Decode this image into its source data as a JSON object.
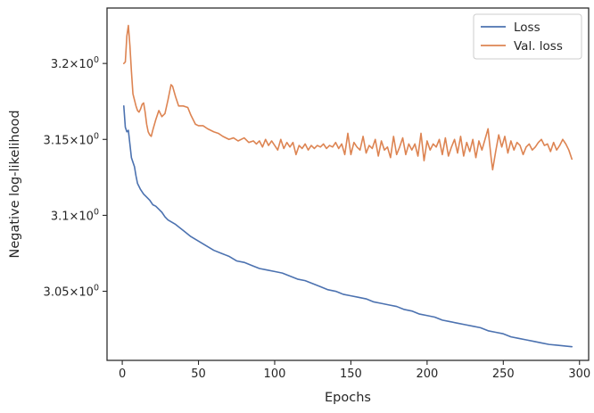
{
  "chart_data": {
    "type": "line",
    "xlabel": "Epochs",
    "ylabel": "Negative log-likelihood",
    "xlim": [
      -10,
      306
    ],
    "ylim": [
      3.0045,
      3.2365
    ],
    "x_ticks": [
      {
        "value": 0,
        "label": "0"
      },
      {
        "value": 50,
        "label": "50"
      },
      {
        "value": 100,
        "label": "100"
      },
      {
        "value": 150,
        "label": "150"
      },
      {
        "value": 200,
        "label": "200"
      },
      {
        "value": 250,
        "label": "250"
      },
      {
        "value": 300,
        "label": "300"
      }
    ],
    "y_ticks": [
      {
        "value": 3.2,
        "mantissa": "3.2",
        "base": "10",
        "exp": "0"
      },
      {
        "value": 3.15,
        "mantissa": "3.15",
        "base": "10",
        "exp": "0"
      },
      {
        "value": 3.1,
        "mantissa": "3.1",
        "base": "10",
        "exp": "0"
      },
      {
        "value": 3.05,
        "mantissa": "3.05",
        "base": "10",
        "exp": "0"
      }
    ],
    "legend_position": "top-right",
    "grid": false,
    "series": [
      {
        "name": "Loss",
        "color": "#4c72b0",
        "points": [
          [
            1,
            3.172
          ],
          [
            2,
            3.158
          ],
          [
            3,
            3.155
          ],
          [
            4,
            3.156
          ],
          [
            5,
            3.147
          ],
          [
            6,
            3.138
          ],
          [
            7,
            3.135
          ],
          [
            8,
            3.132
          ],
          [
            9,
            3.126
          ],
          [
            10,
            3.121
          ],
          [
            12,
            3.117
          ],
          [
            14,
            3.114
          ],
          [
            16,
            3.112
          ],
          [
            18,
            3.11
          ],
          [
            20,
            3.107
          ],
          [
            22,
            3.106
          ],
          [
            24,
            3.104
          ],
          [
            26,
            3.102
          ],
          [
            28,
            3.099
          ],
          [
            30,
            3.097
          ],
          [
            35,
            3.094
          ],
          [
            40,
            3.09
          ],
          [
            45,
            3.086
          ],
          [
            50,
            3.083
          ],
          [
            55,
            3.08
          ],
          [
            60,
            3.077
          ],
          [
            65,
            3.075
          ],
          [
            70,
            3.073
          ],
          [
            75,
            3.07
          ],
          [
            80,
            3.069
          ],
          [
            85,
            3.067
          ],
          [
            90,
            3.065
          ],
          [
            95,
            3.064
          ],
          [
            100,
            3.063
          ],
          [
            105,
            3.062
          ],
          [
            110,
            3.06
          ],
          [
            115,
            3.058
          ],
          [
            120,
            3.057
          ],
          [
            125,
            3.055
          ],
          [
            130,
            3.053
          ],
          [
            135,
            3.051
          ],
          [
            140,
            3.05
          ],
          [
            145,
            3.048
          ],
          [
            150,
            3.047
          ],
          [
            155,
            3.046
          ],
          [
            160,
            3.045
          ],
          [
            165,
            3.043
          ],
          [
            170,
            3.042
          ],
          [
            175,
            3.041
          ],
          [
            180,
            3.04
          ],
          [
            185,
            3.038
          ],
          [
            190,
            3.037
          ],
          [
            195,
            3.035
          ],
          [
            200,
            3.034
          ],
          [
            205,
            3.033
          ],
          [
            210,
            3.031
          ],
          [
            215,
            3.03
          ],
          [
            220,
            3.029
          ],
          [
            225,
            3.028
          ],
          [
            230,
            3.027
          ],
          [
            235,
            3.026
          ],
          [
            240,
            3.024
          ],
          [
            245,
            3.023
          ],
          [
            250,
            3.022
          ],
          [
            255,
            3.02
          ],
          [
            260,
            3.019
          ],
          [
            265,
            3.018
          ],
          [
            270,
            3.017
          ],
          [
            275,
            3.016
          ],
          [
            280,
            3.015
          ],
          [
            285,
            3.0145
          ],
          [
            290,
            3.014
          ],
          [
            295,
            3.0135
          ]
        ]
      },
      {
        "name": "Val. loss",
        "color": "#dd8452",
        "points": [
          [
            1,
            3.2
          ],
          [
            2,
            3.201
          ],
          [
            3,
            3.218
          ],
          [
            4,
            3.225
          ],
          [
            5,
            3.212
          ],
          [
            6,
            3.195
          ],
          [
            7,
            3.18
          ],
          [
            8,
            3.176
          ],
          [
            9,
            3.172
          ],
          [
            10,
            3.169
          ],
          [
            11,
            3.168
          ],
          [
            12,
            3.17
          ],
          [
            13,
            3.173
          ],
          [
            14,
            3.174
          ],
          [
            15,
            3.168
          ],
          [
            16,
            3.16
          ],
          [
            17,
            3.155
          ],
          [
            18,
            3.153
          ],
          [
            19,
            3.152
          ],
          [
            20,
            3.156
          ],
          [
            22,
            3.163
          ],
          [
            24,
            3.169
          ],
          [
            26,
            3.165
          ],
          [
            28,
            3.167
          ],
          [
            30,
            3.176
          ],
          [
            32,
            3.186
          ],
          [
            33,
            3.185
          ],
          [
            35,
            3.178
          ],
          [
            37,
            3.172
          ],
          [
            40,
            3.172
          ],
          [
            43,
            3.171
          ],
          [
            45,
            3.166
          ],
          [
            48,
            3.16
          ],
          [
            50,
            3.159
          ],
          [
            53,
            3.159
          ],
          [
            56,
            3.157
          ],
          [
            60,
            3.155
          ],
          [
            63,
            3.154
          ],
          [
            66,
            3.152
          ],
          [
            70,
            3.15
          ],
          [
            73,
            3.151
          ],
          [
            76,
            3.149
          ],
          [
            80,
            3.151
          ],
          [
            83,
            3.148
          ],
          [
            86,
            3.149
          ],
          [
            88,
            3.147
          ],
          [
            90,
            3.149
          ],
          [
            92,
            3.145
          ],
          [
            94,
            3.15
          ],
          [
            96,
            3.146
          ],
          [
            98,
            3.149
          ],
          [
            100,
            3.146
          ],
          [
            102,
            3.143
          ],
          [
            104,
            3.15
          ],
          [
            106,
            3.144
          ],
          [
            108,
            3.148
          ],
          [
            110,
            3.145
          ],
          [
            112,
            3.148
          ],
          [
            114,
            3.14
          ],
          [
            116,
            3.146
          ],
          [
            118,
            3.144
          ],
          [
            120,
            3.147
          ],
          [
            122,
            3.143
          ],
          [
            124,
            3.146
          ],
          [
            126,
            3.144
          ],
          [
            128,
            3.146
          ],
          [
            130,
            3.145
          ],
          [
            132,
            3.147
          ],
          [
            134,
            3.144
          ],
          [
            136,
            3.146
          ],
          [
            138,
            3.145
          ],
          [
            140,
            3.148
          ],
          [
            142,
            3.144
          ],
          [
            144,
            3.147
          ],
          [
            146,
            3.14
          ],
          [
            148,
            3.154
          ],
          [
            150,
            3.14
          ],
          [
            152,
            3.148
          ],
          [
            154,
            3.145
          ],
          [
            156,
            3.143
          ],
          [
            158,
            3.152
          ],
          [
            160,
            3.141
          ],
          [
            162,
            3.146
          ],
          [
            164,
            3.144
          ],
          [
            166,
            3.15
          ],
          [
            168,
            3.139
          ],
          [
            170,
            3.149
          ],
          [
            172,
            3.143
          ],
          [
            174,
            3.145
          ],
          [
            176,
            3.138
          ],
          [
            178,
            3.152
          ],
          [
            180,
            3.14
          ],
          [
            182,
            3.145
          ],
          [
            184,
            3.151
          ],
          [
            186,
            3.14
          ],
          [
            188,
            3.147
          ],
          [
            190,
            3.143
          ],
          [
            192,
            3.147
          ],
          [
            194,
            3.139
          ],
          [
            196,
            3.154
          ],
          [
            198,
            3.136
          ],
          [
            200,
            3.149
          ],
          [
            202,
            3.143
          ],
          [
            204,
            3.147
          ],
          [
            206,
            3.145
          ],
          [
            208,
            3.15
          ],
          [
            210,
            3.14
          ],
          [
            212,
            3.151
          ],
          [
            214,
            3.139
          ],
          [
            216,
            3.145
          ],
          [
            218,
            3.15
          ],
          [
            220,
            3.141
          ],
          [
            222,
            3.152
          ],
          [
            224,
            3.139
          ],
          [
            226,
            3.148
          ],
          [
            228,
            3.142
          ],
          [
            230,
            3.15
          ],
          [
            232,
            3.138
          ],
          [
            234,
            3.149
          ],
          [
            236,
            3.143
          ],
          [
            238,
            3.15
          ],
          [
            240,
            3.157
          ],
          [
            242,
            3.138
          ],
          [
            243,
            3.13
          ],
          [
            245,
            3.142
          ],
          [
            247,
            3.153
          ],
          [
            249,
            3.145
          ],
          [
            251,
            3.152
          ],
          [
            253,
            3.141
          ],
          [
            255,
            3.149
          ],
          [
            257,
            3.143
          ],
          [
            259,
            3.148
          ],
          [
            261,
            3.146
          ],
          [
            263,
            3.14
          ],
          [
            265,
            3.145
          ],
          [
            267,
            3.147
          ],
          [
            269,
            3.143
          ],
          [
            271,
            3.145
          ],
          [
            273,
            3.148
          ],
          [
            275,
            3.15
          ],
          [
            277,
            3.146
          ],
          [
            279,
            3.147
          ],
          [
            281,
            3.142
          ],
          [
            283,
            3.148
          ],
          [
            285,
            3.143
          ],
          [
            287,
            3.146
          ],
          [
            289,
            3.15
          ],
          [
            291,
            3.147
          ],
          [
            293,
            3.143
          ],
          [
            295,
            3.137
          ]
        ]
      }
    ]
  }
}
